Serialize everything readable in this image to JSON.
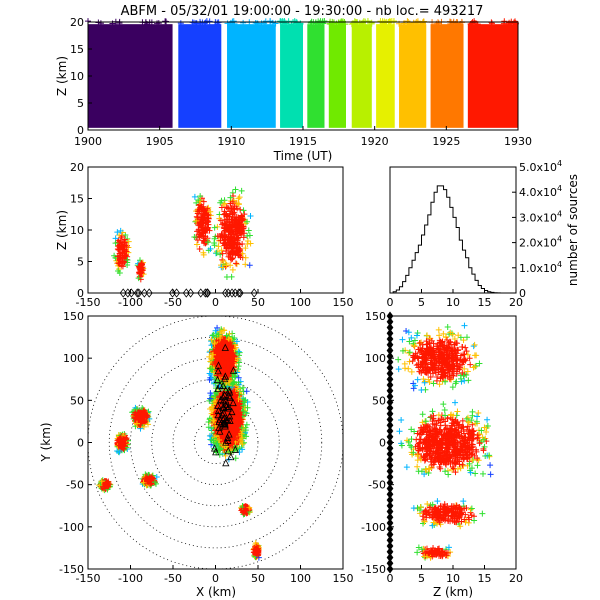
{
  "title": "ABFM - 05/32/01 19:00:00 - 19:30:00 - nb loc.= 493217",
  "chart_data": [
    {
      "panel": "time-height",
      "type": "scatter",
      "xlabel": "Time (UT)",
      "ylabel": "Z (km)",
      "xlim": [
        1900,
        1930
      ],
      "ylim": [
        0,
        20
      ],
      "xticks": [
        "1900",
        "1905",
        "1910",
        "1915",
        "1920",
        "1925",
        "1930"
      ],
      "yticks": [
        "0",
        "5",
        "10",
        "15",
        "20"
      ],
      "bands": [
        {
          "t0": 1900.0,
          "t1": 1905.9,
          "color": "#3a0060"
        },
        {
          "t0": 1906.3,
          "t1": 1909.3,
          "color": "#1540ff"
        },
        {
          "t0": 1909.7,
          "t1": 1913.1,
          "color": "#00b4ff"
        },
        {
          "t0": 1913.4,
          "t1": 1915.0,
          "color": "#00e0b0"
        },
        {
          "t0": 1915.3,
          "t1": 1916.5,
          "color": "#30e030"
        },
        {
          "t0": 1916.8,
          "t1": 1918.0,
          "color": "#70ea00"
        },
        {
          "t0": 1918.4,
          "t1": 1919.8,
          "color": "#b8f000"
        },
        {
          "t0": 1920.1,
          "t1": 1921.4,
          "color": "#e6f000"
        },
        {
          "t0": 1921.7,
          "t1": 1923.6,
          "color": "#ffc000"
        },
        {
          "t0": 1923.9,
          "t1": 1926.2,
          "color": "#ff7800"
        },
        {
          "t0": 1926.5,
          "t1": 1930.0,
          "color": "#ff1800"
        }
      ]
    },
    {
      "panel": "x-z",
      "type": "scatter",
      "ylabel": "Z (km)",
      "xlim": [
        -150,
        150
      ],
      "ylim": [
        0,
        20
      ],
      "xticks": [
        "-150",
        "-100",
        "-50",
        "0",
        "50",
        "100",
        "150"
      ],
      "yticks": [
        "0",
        "5",
        "10",
        "15",
        "20"
      ],
      "clusters": [
        {
          "cx": -110,
          "cz": 6.5,
          "rx": 12,
          "rz": 4.5
        },
        {
          "cx": -88,
          "cz": 3.5,
          "rx": 5,
          "rz": 2.5
        },
        {
          "cx": 20,
          "cz": 9.5,
          "rx": 28,
          "rz": 9
        },
        {
          "cx": -15,
          "cz": 11,
          "rx": 14,
          "rz": 7
        }
      ]
    },
    {
      "panel": "histogram",
      "type": "bar",
      "ylabel": "number of sources",
      "xlim": [
        0,
        20
      ],
      "ylim": [
        0,
        50000
      ],
      "xticks": [
        "0",
        "5",
        "10",
        "15",
        "20"
      ],
      "yticks_mantissa": [
        "0",
        "1.0x10",
        "2.0x10",
        "3.0x10",
        "4.0x10",
        "5.0x10"
      ],
      "ytick_exponent": "4",
      "bin_width": 0.5,
      "values": [
        0,
        500,
        1200,
        2500,
        4500,
        7000,
        10000,
        13000,
        16000,
        19000,
        23000,
        27000,
        31000,
        36000,
        40000,
        42500,
        42500,
        41000,
        38000,
        34000,
        30000,
        26000,
        21000,
        17000,
        14000,
        10000,
        7500,
        5000,
        3000,
        1800,
        1000,
        500,
        250,
        100,
        50,
        20,
        10,
        5,
        2,
        0
      ]
    },
    {
      "panel": "x-y",
      "type": "scatter",
      "xlabel": "X (km)",
      "ylabel": "Y (km)",
      "xlim": [
        -150,
        150
      ],
      "ylim": [
        -150,
        150
      ],
      "xticks": [
        "-150",
        "-100",
        "-50",
        "0",
        "50",
        "100",
        "150"
      ],
      "yticks": [
        "-150",
        "-100",
        "-50",
        "0",
        "50",
        "100",
        "150"
      ],
      "range_rings_km": [
        25,
        50,
        75,
        100,
        125,
        150
      ],
      "clusters": [
        {
          "cx": 15,
          "cy": 30,
          "rx": 28,
          "ry": 60
        },
        {
          "cx": 10,
          "cy": 100,
          "rx": 22,
          "ry": 45
        },
        {
          "cx": -88,
          "cy": 30,
          "rx": 14,
          "ry": 16
        },
        {
          "cx": -110,
          "cy": 0,
          "rx": 10,
          "ry": 14
        },
        {
          "cx": -78,
          "cy": -45,
          "rx": 12,
          "ry": 9
        },
        {
          "cx": -130,
          "cy": -50,
          "rx": 9,
          "ry": 8
        },
        {
          "cx": 48,
          "cy": -128,
          "rx": 5,
          "ry": 12
        },
        {
          "cx": 35,
          "cy": -80,
          "rx": 8,
          "ry": 8
        }
      ]
    },
    {
      "panel": "z-y",
      "type": "scatter",
      "xlabel": "Z (km)",
      "xlim": [
        0,
        20
      ],
      "ylim": [
        -150,
        150
      ],
      "xticks": [
        "0",
        "5",
        "10",
        "15",
        "20"
      ],
      "yticks": [
        "-150",
        "-100",
        "-50",
        "0",
        "50",
        "100",
        "150"
      ],
      "clusters": [
        {
          "cz": 8,
          "cy": 100,
          "rz": 8,
          "ry": 45
        },
        {
          "cz": 9,
          "cy": 0,
          "rz": 9.5,
          "ry": 55
        },
        {
          "cz": 9,
          "cy": -85,
          "rz": 7,
          "ry": 20
        },
        {
          "cz": 7,
          "cy": -130,
          "rz": 4,
          "ry": 10
        }
      ]
    }
  ]
}
